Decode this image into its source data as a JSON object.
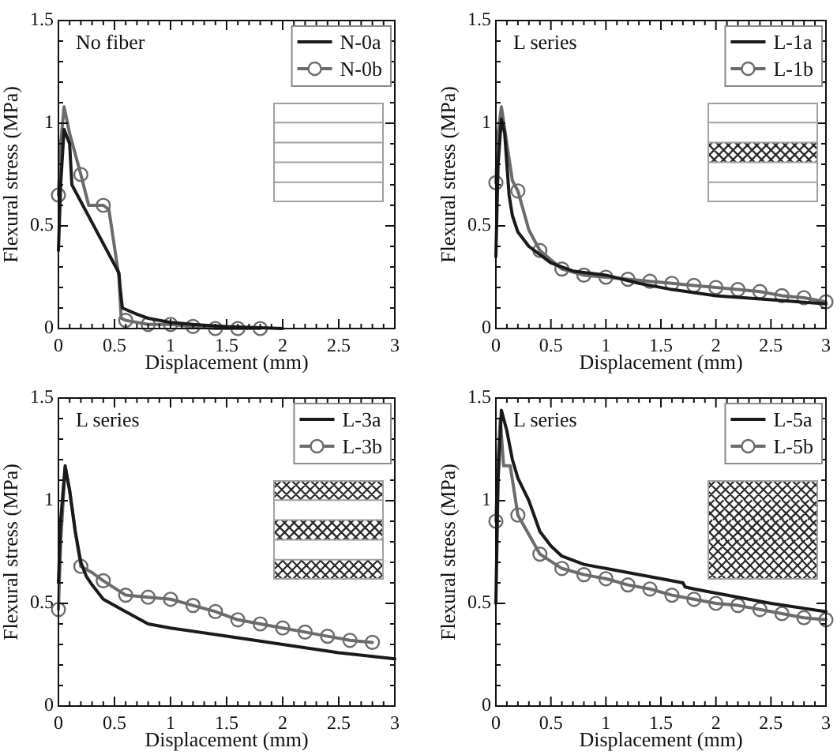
{
  "chart_data": [
    {
      "type": "line",
      "annotations": [
        "No fiber"
      ],
      "xlabel": "Displacement (mm)",
      "ylabel": "Flexural stress (MPa)",
      "xlim": [
        0,
        3
      ],
      "ylim": [
        0,
        1.5
      ],
      "xticks": [
        0,
        {
          "value": 0.1,
          "label": null
        },
        {
          "value": 0.2,
          "label": null
        },
        {
          "value": 0.3,
          "label": null
        },
        {
          "value": 0.4,
          "label": null
        },
        0.5,
        {
          "value": 0.6,
          "label": null
        },
        {
          "value": 0.7,
          "label": null
        },
        {
          "value": 0.8,
          "label": null
        },
        {
          "value": 0.9,
          "label": null
        },
        1,
        {
          "value": 1.1,
          "label": null
        },
        {
          "value": 1.2,
          "label": null
        },
        {
          "value": 1.3,
          "label": null
        },
        {
          "value": 1.4,
          "label": null
        },
        1.5,
        {
          "value": 1.6,
          "label": null
        },
        {
          "value": 1.7,
          "label": null
        },
        {
          "value": 1.8,
          "label": null
        },
        {
          "value": 1.9,
          "label": null
        },
        2,
        {
          "value": 2.1,
          "label": null
        },
        {
          "value": 2.2,
          "label": null
        },
        {
          "value": 2.3,
          "label": null
        },
        {
          "value": 2.4,
          "label": null
        },
        2.5,
        {
          "value": 2.6,
          "label": null
        },
        {
          "value": 2.7,
          "label": null
        },
        {
          "value": 2.8,
          "label": null
        },
        {
          "value": 2.9,
          "label": null
        },
        3
      ],
      "yticks": [
        0,
        {
          "value": 0.1,
          "label": null
        },
        {
          "value": 0.2,
          "label": null
        },
        {
          "value": 0.3,
          "label": null
        },
        {
          "value": 0.4,
          "label": null
        },
        0.5,
        {
          "value": 0.6,
          "label": null
        },
        {
          "value": 0.7,
          "label": null
        },
        {
          "value": 0.8,
          "label": null
        },
        {
          "value": 0.9,
          "label": null
        },
        1,
        {
          "value": 1.1,
          "label": null
        },
        {
          "value": 1.2,
          "label": null
        },
        {
          "value": 1.3,
          "label": null
        },
        {
          "value": 1.4,
          "label": null
        },
        1.5
      ],
      "legend": "top right",
      "series": [
        {
          "name": "N-0a",
          "color": "#1a1a1a",
          "marker": "none",
          "x": [
            0,
            0.02,
            0.05,
            0.1,
            0.12,
            0.54,
            0.55,
            0.57,
            0.7,
            0.8,
            1.0,
            1.2,
            1.5,
            2.0
          ],
          "values": [
            0.38,
            0.7,
            0.97,
            0.9,
            0.7,
            0.27,
            0.2,
            0.1,
            0.07,
            0.05,
            0.03,
            0.02,
            0.01,
            0
          ]
        },
        {
          "name": "N-0b",
          "color": "#6b6b6b",
          "marker": "circle",
          "x": [
            0,
            0.02,
            0.05,
            0.1,
            0.2,
            0.27,
            0.4,
            0.45,
            0.54,
            0.56,
            0.6,
            0.8,
            1.0,
            1.2,
            1.4,
            1.6,
            1.8
          ],
          "values": [
            0.65,
            0.9,
            1.08,
            0.95,
            0.75,
            0.6,
            0.6,
            0.58,
            0.25,
            0.05,
            0.04,
            0.02,
            0.02,
            0.01,
            0,
            0,
            0
          ]
        }
      ]
    },
    {
      "type": "line",
      "annotations": [
        "L series"
      ],
      "xlabel": "Displacement (mm)",
      "ylabel": "Flexural stress (MPa)",
      "xlim": [
        0,
        3
      ],
      "ylim": [
        0,
        1.5
      ],
      "xticks": [
        0,
        {
          "value": 0.1,
          "label": null
        },
        {
          "value": 0.2,
          "label": null
        },
        {
          "value": 0.3,
          "label": null
        },
        {
          "value": 0.4,
          "label": null
        },
        0.5,
        {
          "value": 0.6,
          "label": null
        },
        {
          "value": 0.7,
          "label": null
        },
        {
          "value": 0.8,
          "label": null
        },
        {
          "value": 0.9,
          "label": null
        },
        1,
        {
          "value": 1.1,
          "label": null
        },
        {
          "value": 1.2,
          "label": null
        },
        {
          "value": 1.3,
          "label": null
        },
        {
          "value": 1.4,
          "label": null
        },
        1.5,
        {
          "value": 1.6,
          "label": null
        },
        {
          "value": 1.7,
          "label": null
        },
        {
          "value": 1.8,
          "label": null
        },
        {
          "value": 1.9,
          "label": null
        },
        2,
        {
          "value": 2.1,
          "label": null
        },
        {
          "value": 2.2,
          "label": null
        },
        {
          "value": 2.3,
          "label": null
        },
        {
          "value": 2.4,
          "label": null
        },
        2.5,
        {
          "value": 2.6,
          "label": null
        },
        {
          "value": 2.7,
          "label": null
        },
        {
          "value": 2.8,
          "label": null
        },
        {
          "value": 2.9,
          "label": null
        },
        3
      ],
      "yticks": [
        0,
        {
          "value": 0.1,
          "label": null
        },
        {
          "value": 0.2,
          "label": null
        },
        {
          "value": 0.3,
          "label": null
        },
        {
          "value": 0.4,
          "label": null
        },
        0.5,
        {
          "value": 0.6,
          "label": null
        },
        {
          "value": 0.7,
          "label": null
        },
        {
          "value": 0.8,
          "label": null
        },
        {
          "value": 0.9,
          "label": null
        },
        1,
        {
          "value": 1.1,
          "label": null
        },
        {
          "value": 1.2,
          "label": null
        },
        {
          "value": 1.3,
          "label": null
        },
        {
          "value": 1.4,
          "label": null
        },
        1.5
      ],
      "legend": "top right",
      "series": [
        {
          "name": "L-1a",
          "color": "#1a1a1a",
          "marker": "none",
          "x": [
            0,
            0.02,
            0.05,
            0.08,
            0.12,
            0.15,
            0.2,
            0.3,
            0.4,
            0.5,
            0.7,
            1.0,
            1.3,
            1.6,
            2.0,
            2.5,
            3.0
          ],
          "values": [
            0.35,
            0.8,
            1.02,
            0.95,
            0.65,
            0.55,
            0.47,
            0.4,
            0.36,
            0.32,
            0.28,
            0.26,
            0.22,
            0.19,
            0.16,
            0.14,
            0.12
          ]
        },
        {
          "name": "L-1b",
          "color": "#6b6b6b",
          "marker": "circle",
          "x": [
            0,
            0.02,
            0.05,
            0.1,
            0.15,
            0.2,
            0.3,
            0.4,
            0.6,
            0.8,
            1.0,
            1.2,
            1.4,
            1.6,
            1.8,
            2.0,
            2.2,
            2.4,
            2.6,
            2.8,
            3.0
          ],
          "values": [
            0.71,
            0.95,
            1.08,
            0.9,
            0.72,
            0.67,
            0.48,
            0.38,
            0.29,
            0.26,
            0.25,
            0.24,
            0.23,
            0.22,
            0.21,
            0.2,
            0.19,
            0.18,
            0.16,
            0.15,
            0.13
          ]
        }
      ]
    },
    {
      "type": "line",
      "annotations": [
        "L series"
      ],
      "xlabel": "Displacement (mm)",
      "ylabel": "Flexural stress (MPa)",
      "xlim": [
        0,
        3
      ],
      "ylim": [
        0,
        1.5
      ],
      "xticks": [
        0,
        {
          "value": 0.1,
          "label": null
        },
        {
          "value": 0.2,
          "label": null
        },
        {
          "value": 0.3,
          "label": null
        },
        {
          "value": 0.4,
          "label": null
        },
        0.5,
        {
          "value": 0.6,
          "label": null
        },
        {
          "value": 0.7,
          "label": null
        },
        {
          "value": 0.8,
          "label": null
        },
        {
          "value": 0.9,
          "label": null
        },
        1,
        {
          "value": 1.1,
          "label": null
        },
        {
          "value": 1.2,
          "label": null
        },
        {
          "value": 1.3,
          "label": null
        },
        {
          "value": 1.4,
          "label": null
        },
        1.5,
        {
          "value": 1.6,
          "label": null
        },
        {
          "value": 1.7,
          "label": null
        },
        {
          "value": 1.8,
          "label": null
        },
        {
          "value": 1.9,
          "label": null
        },
        2,
        {
          "value": 2.1,
          "label": null
        },
        {
          "value": 2.2,
          "label": null
        },
        {
          "value": 2.3,
          "label": null
        },
        {
          "value": 2.4,
          "label": null
        },
        2.5,
        {
          "value": 2.6,
          "label": null
        },
        {
          "value": 2.7,
          "label": null
        },
        {
          "value": 2.8,
          "label": null
        },
        {
          "value": 2.9,
          "label": null
        },
        3
      ],
      "yticks": [
        0,
        {
          "value": 0.1,
          "label": null
        },
        {
          "value": 0.2,
          "label": null
        },
        {
          "value": 0.3,
          "label": null
        },
        {
          "value": 0.4,
          "label": null
        },
        0.5,
        {
          "value": 0.6,
          "label": null
        },
        {
          "value": 0.7,
          "label": null
        },
        {
          "value": 0.8,
          "label": null
        },
        {
          "value": 0.9,
          "label": null
        },
        1,
        {
          "value": 1.1,
          "label": null
        },
        {
          "value": 1.2,
          "label": null
        },
        {
          "value": 1.3,
          "label": null
        },
        {
          "value": 1.4,
          "label": null
        },
        1.5
      ],
      "legend": "top right",
      "series": [
        {
          "name": "L-3a",
          "color": "#1a1a1a",
          "marker": "none",
          "x": [
            0,
            0.02,
            0.06,
            0.1,
            0.15,
            0.2,
            0.25,
            0.3,
            0.4,
            0.6,
            0.8,
            1.0,
            1.5,
            2.0,
            2.5,
            3.0
          ],
          "values": [
            0.6,
            0.9,
            1.17,
            1.05,
            0.85,
            0.7,
            0.63,
            0.59,
            0.52,
            0.46,
            0.4,
            0.38,
            0.34,
            0.3,
            0.26,
            0.23
          ]
        },
        {
          "name": "L-3b",
          "color": "#6b6b6b",
          "marker": "circle",
          "x": [
            0,
            0.02,
            0.06,
            0.1,
            0.15,
            0.2,
            0.3,
            0.4,
            0.6,
            0.8,
            1.0,
            1.2,
            1.4,
            1.6,
            1.8,
            2.0,
            2.2,
            2.4,
            2.6,
            2.8
          ],
          "values": [
            0.47,
            0.8,
            1.16,
            1.05,
            0.85,
            0.68,
            0.65,
            0.61,
            0.54,
            0.53,
            0.52,
            0.49,
            0.46,
            0.42,
            0.4,
            0.38,
            0.36,
            0.34,
            0.32,
            0.31
          ]
        }
      ]
    },
    {
      "type": "line",
      "annotations": [
        "L series"
      ],
      "xlabel": "Displacement (mm)",
      "ylabel": "Flexural stress (MPa)",
      "xlim": [
        0,
        3
      ],
      "ylim": [
        0,
        1.5
      ],
      "xticks": [
        0,
        {
          "value": 0.1,
          "label": null
        },
        {
          "value": 0.2,
          "label": null
        },
        {
          "value": 0.3,
          "label": null
        },
        {
          "value": 0.4,
          "label": null
        },
        0.5,
        {
          "value": 0.6,
          "label": null
        },
        {
          "value": 0.7,
          "label": null
        },
        {
          "value": 0.8,
          "label": null
        },
        {
          "value": 0.9,
          "label": null
        },
        1,
        {
          "value": 1.1,
          "label": null
        },
        {
          "value": 1.2,
          "label": null
        },
        {
          "value": 1.3,
          "label": null
        },
        {
          "value": 1.4,
          "label": null
        },
        1.5,
        {
          "value": 1.6,
          "label": null
        },
        {
          "value": 1.7,
          "label": null
        },
        {
          "value": 1.8,
          "label": null
        },
        {
          "value": 1.9,
          "label": null
        },
        2,
        {
          "value": 2.1,
          "label": null
        },
        {
          "value": 2.2,
          "label": null
        },
        {
          "value": 2.3,
          "label": null
        },
        {
          "value": 2.4,
          "label": null
        },
        2.5,
        {
          "value": 2.6,
          "label": null
        },
        {
          "value": 2.7,
          "label": null
        },
        {
          "value": 2.8,
          "label": null
        },
        {
          "value": 2.9,
          "label": null
        },
        3
      ],
      "yticks": [
        0,
        {
          "value": 0.1,
          "label": null
        },
        {
          "value": 0.2,
          "label": null
        },
        {
          "value": 0.3,
          "label": null
        },
        {
          "value": 0.4,
          "label": null
        },
        0.5,
        {
          "value": 0.6,
          "label": null
        },
        {
          "value": 0.7,
          "label": null
        },
        {
          "value": 0.8,
          "label": null
        },
        {
          "value": 0.9,
          "label": null
        },
        1,
        {
          "value": 1.1,
          "label": null
        },
        {
          "value": 1.2,
          "label": null
        },
        {
          "value": 1.3,
          "label": null
        },
        {
          "value": 1.4,
          "label": null
        },
        1.5
      ],
      "legend": "top right",
      "series": [
        {
          "name": "L-5a",
          "color": "#1a1a1a",
          "marker": "none",
          "x": [
            0,
            0.02,
            0.05,
            0.1,
            0.15,
            0.2,
            0.3,
            0.4,
            0.5,
            0.6,
            0.8,
            1.0,
            1.2,
            1.5,
            1.7,
            1.72,
            1.8,
            2.0,
            2.5,
            3.0
          ],
          "values": [
            0.5,
            1.1,
            1.44,
            1.34,
            1.2,
            1.11,
            1.0,
            0.85,
            0.78,
            0.73,
            0.69,
            0.67,
            0.65,
            0.62,
            0.6,
            0.58,
            0.57,
            0.55,
            0.5,
            0.46
          ]
        },
        {
          "name": "L-5b",
          "color": "#6b6b6b",
          "marker": "circle",
          "x": [
            0,
            0.02,
            0.04,
            0.07,
            0.13,
            0.2,
            0.4,
            0.6,
            0.8,
            1.0,
            1.2,
            1.4,
            1.6,
            1.8,
            2.0,
            2.2,
            2.4,
            2.6,
            2.8,
            3.0
          ],
          "values": [
            0.9,
            1.2,
            1.4,
            1.17,
            1.17,
            0.93,
            0.74,
            0.67,
            0.64,
            0.62,
            0.59,
            0.57,
            0.54,
            0.52,
            0.5,
            0.49,
            0.47,
            0.45,
            0.43,
            0.42
          ]
        }
      ]
    }
  ]
}
